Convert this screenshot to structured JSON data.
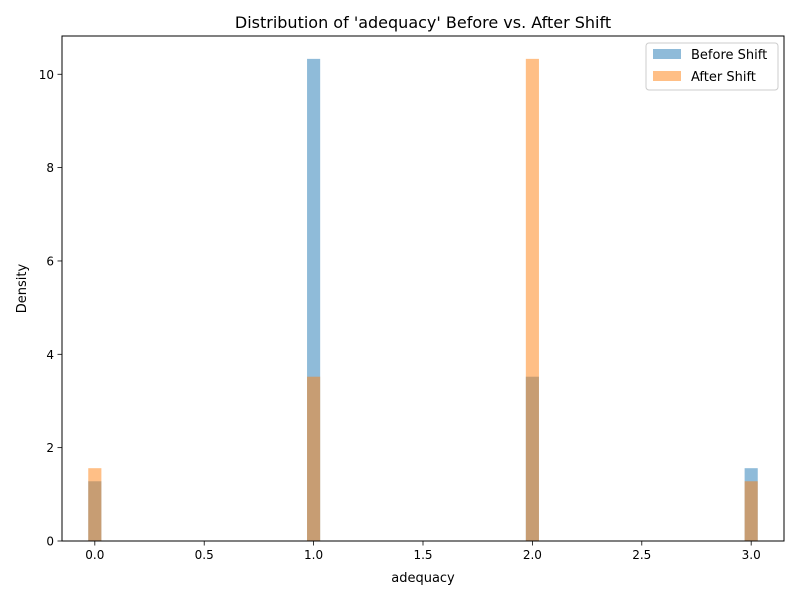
{
  "chart_data": {
    "type": "histogram",
    "title": "Distribution of 'adequacy' Before vs. After Shift",
    "xlabel": "adequacy",
    "ylabel": "Density",
    "xlim": [
      -0.15,
      3.15
    ],
    "ylim": [
      0,
      10.82
    ],
    "xticks": [
      0.0,
      0.5,
      1.0,
      1.5,
      2.0,
      2.5,
      3.0
    ],
    "xtick_labels": [
      "0.0",
      "0.5",
      "1.0",
      "1.5",
      "2.0",
      "2.5",
      "3.0"
    ],
    "yticks": [
      0,
      2,
      4,
      6,
      8,
      10
    ],
    "ytick_labels": [
      "0",
      "2",
      "4",
      "6",
      "8",
      "10"
    ],
    "bin_width": 0.06,
    "grid": false,
    "legend_position": "top-right",
    "series": [
      {
        "name": "Before Shift",
        "color": "#1f77b4",
        "opacity": 0.5,
        "bins": [
          {
            "x": 0.0,
            "density": 1.28
          },
          {
            "x": 1.0,
            "density": 10.33
          },
          {
            "x": 2.0,
            "density": 3.52
          },
          {
            "x": 3.0,
            "density": 1.56
          }
        ]
      },
      {
        "name": "After Shift",
        "color": "#ff7f0e",
        "opacity": 0.5,
        "bins": [
          {
            "x": 0.0,
            "density": 1.56
          },
          {
            "x": 1.0,
            "density": 3.52
          },
          {
            "x": 2.0,
            "density": 10.33
          },
          {
            "x": 3.0,
            "density": 1.28
          }
        ]
      }
    ]
  }
}
